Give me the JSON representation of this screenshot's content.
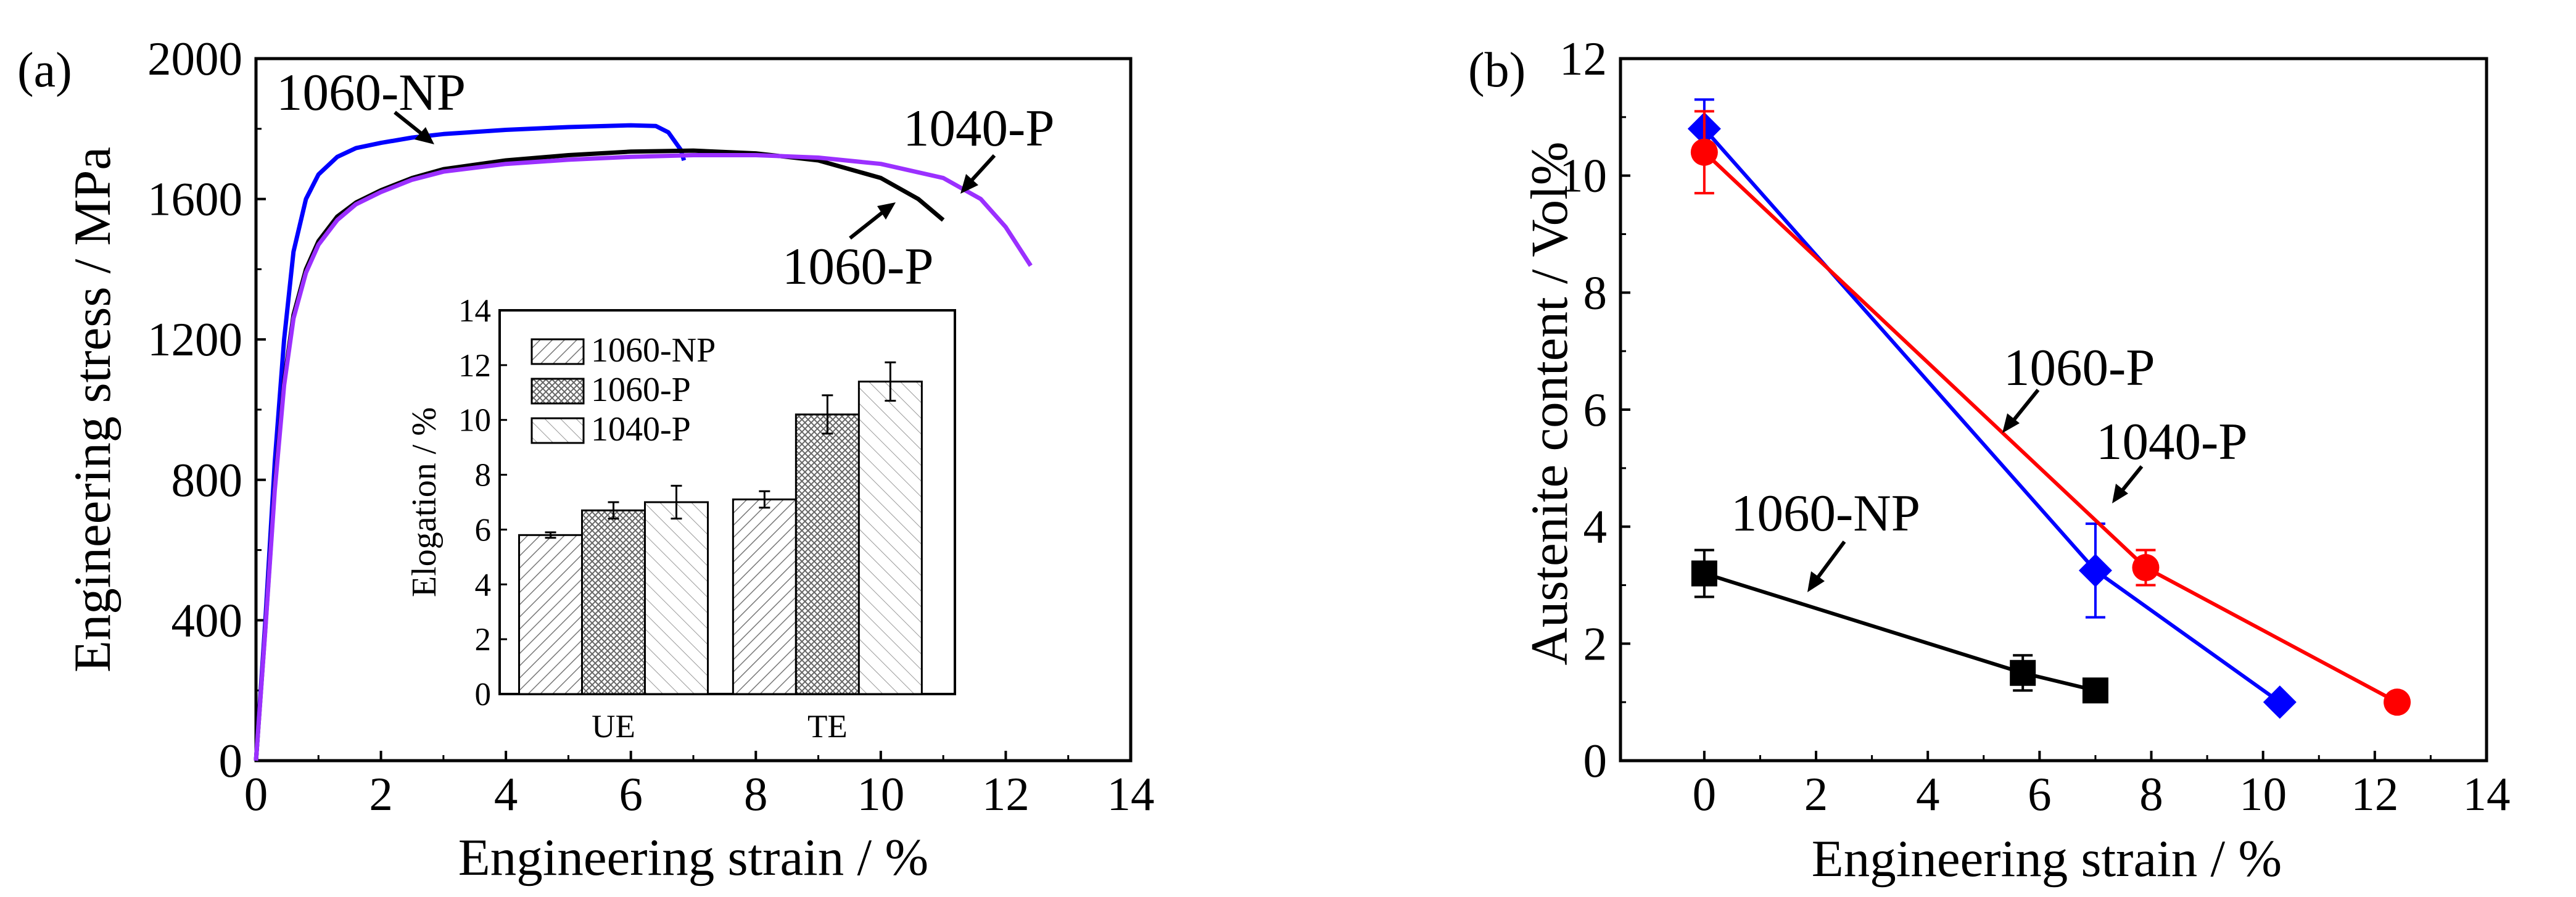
{
  "figure": {
    "panel_a_label": "(a)",
    "panel_b_label": "(b)"
  },
  "colors": {
    "np": "#0000ff",
    "p1060": "#000000",
    "p1040": "#9b30ff",
    "red": "#ff0000",
    "blue": "#0000ff",
    "black": "#000000"
  },
  "chart_data": [
    {
      "id": "panel-a",
      "type": "line",
      "xlabel": "Engineering strain / %",
      "ylabel": "Engineering stress / MPa",
      "xlim": [
        0,
        14
      ],
      "ylim": [
        0,
        2000
      ],
      "xticks": [
        0,
        2,
        4,
        6,
        8,
        10,
        12,
        14
      ],
      "yticks": [
        0,
        400,
        800,
        1200,
        1600,
        2000
      ],
      "series": [
        {
          "name": "1060-NP",
          "color": "#0000ff",
          "x": [
            0,
            0.15,
            0.3,
            0.45,
            0.6,
            0.8,
            1.0,
            1.3,
            1.6,
            2.0,
            2.5,
            3.0,
            4.0,
            5.0,
            6.0,
            6.4,
            6.6,
            6.8,
            6.85
          ],
          "y": [
            0,
            400,
            850,
            1200,
            1450,
            1600,
            1670,
            1720,
            1745,
            1760,
            1775,
            1785,
            1797,
            1805,
            1810,
            1808,
            1790,
            1740,
            1710
          ]
        },
        {
          "name": "1060-P",
          "color": "#000000",
          "x": [
            0,
            0.15,
            0.3,
            0.45,
            0.6,
            0.8,
            1.0,
            1.3,
            1.6,
            2.0,
            2.5,
            3.0,
            4.0,
            5.0,
            6.0,
            7.0,
            8.0,
            9.0,
            10.0,
            10.6,
            11.0
          ],
          "y": [
            0,
            380,
            780,
            1080,
            1270,
            1400,
            1480,
            1550,
            1590,
            1625,
            1660,
            1685,
            1710,
            1725,
            1735,
            1738,
            1730,
            1710,
            1660,
            1600,
            1540
          ]
        },
        {
          "name": "1040-P",
          "color": "#9b30ff",
          "x": [
            0,
            0.15,
            0.3,
            0.45,
            0.6,
            0.8,
            1.0,
            1.3,
            1.6,
            2.0,
            2.5,
            3.0,
            4.0,
            5.0,
            6.0,
            7.0,
            8.0,
            9.0,
            10.0,
            11.0,
            11.6,
            12.0,
            12.4
          ],
          "y": [
            0,
            375,
            770,
            1070,
            1260,
            1390,
            1470,
            1540,
            1585,
            1620,
            1655,
            1678,
            1700,
            1712,
            1720,
            1725,
            1725,
            1718,
            1700,
            1660,
            1600,
            1520,
            1410
          ]
        }
      ],
      "annotations": [
        {
          "text": "1060-NP",
          "points_to": "1060-NP"
        },
        {
          "text": "1040-P",
          "points_to": "1040-P"
        },
        {
          "text": "1060-P",
          "points_to": "1060-P"
        }
      ]
    },
    {
      "id": "panel-a-inset",
      "type": "bar",
      "ylabel": "Elogation / %",
      "categories": [
        "UE",
        "TE"
      ],
      "ylim": [
        0,
        14
      ],
      "yticks": [
        0,
        2,
        4,
        6,
        8,
        10,
        12,
        14
      ],
      "series": [
        {
          "name": "1060-NP",
          "values": [
            5.8,
            7.1
          ],
          "errors": [
            0.1,
            0.3
          ]
        },
        {
          "name": "1060-P",
          "values": [
            6.7,
            10.2
          ],
          "errors": [
            0.3,
            0.7
          ]
        },
        {
          "name": "1040-P",
          "values": [
            7.0,
            11.4
          ],
          "errors": [
            0.6,
            0.7
          ]
        }
      ]
    },
    {
      "id": "panel-b",
      "type": "scatter",
      "xlabel": "Engineering strain / %",
      "ylabel": "Austenite content / Vol%",
      "xlim": [
        -1.5,
        14
      ],
      "ylim": [
        0,
        12
      ],
      "xticks": [
        0,
        2,
        4,
        6,
        8,
        10,
        12,
        14
      ],
      "yticks": [
        0,
        2,
        4,
        6,
        8,
        10,
        12
      ],
      "series": [
        {
          "name": "1060-NP",
          "color": "#000000",
          "marker": "square",
          "x": [
            0,
            5.7,
            7.0
          ],
          "y": [
            3.2,
            1.5,
            1.2
          ],
          "yerr": [
            0.4,
            0.3,
            0.1
          ]
        },
        {
          "name": "1060-P",
          "color": "#0000ff",
          "marker": "diamond",
          "x": [
            0,
            7.0,
            10.3
          ],
          "y": [
            10.8,
            3.25,
            1.0
          ],
          "yerr": [
            0.5,
            0.8,
            0.0
          ]
        },
        {
          "name": "1040-P",
          "color": "#ff0000",
          "marker": "circle",
          "x": [
            0,
            7.9,
            12.4
          ],
          "y": [
            10.4,
            3.3,
            1.0
          ],
          "yerr": [
            0.7,
            0.3,
            0.0
          ]
        }
      ],
      "annotations": [
        {
          "text": "1060-P",
          "points_to": "1060-P"
        },
        {
          "text": "1040-P",
          "points_to": "1040-P"
        },
        {
          "text": "1060-NP",
          "points_to": "1060-NP"
        }
      ]
    }
  ]
}
